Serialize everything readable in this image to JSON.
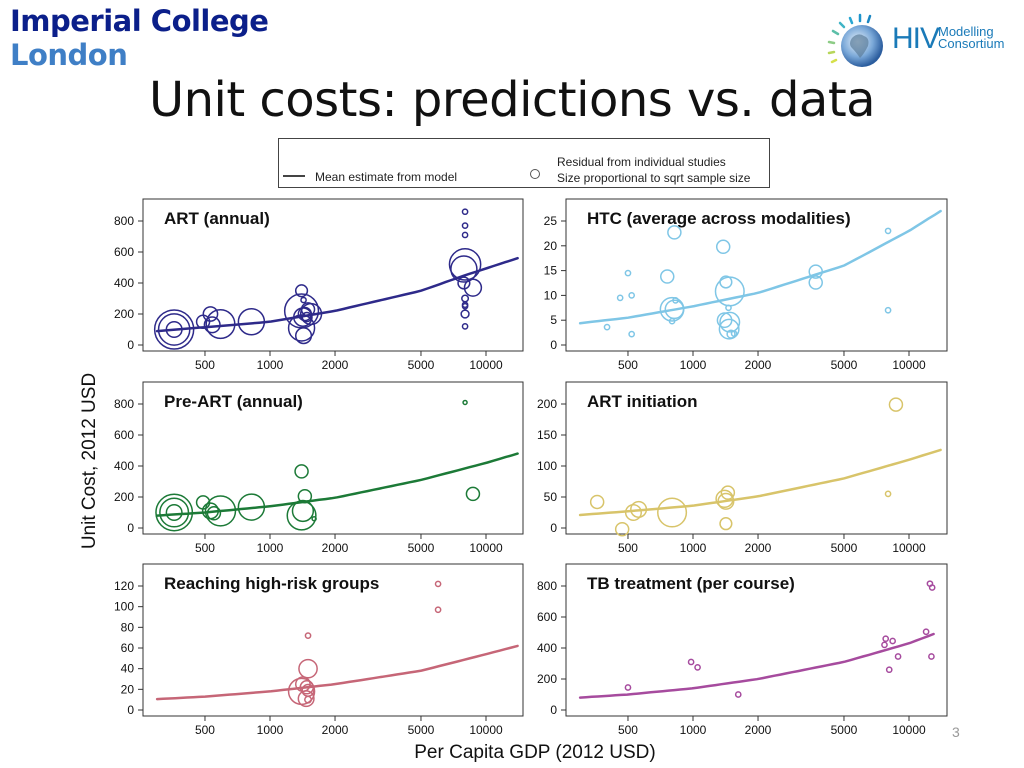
{
  "header": {
    "logo_line1": "Imperial College",
    "logo_line2": "London",
    "partner_logo_big": "HIV",
    "partner_logo_line1": "Modelling",
    "partner_logo_line2": "Consortium",
    "title": "Unit costs: predictions vs. data"
  },
  "legend": {
    "line_label": "Mean estimate from model",
    "circle_label_1": "Residual from individual studies",
    "circle_label_2": "Size proportional to sqrt sample size"
  },
  "axes": {
    "ylabel": "Unit Cost, 2012 USD",
    "xlabel": "Per Capita GDP (2012 USD)"
  },
  "page_number": "3",
  "chart_data": [
    {
      "type": "scatter",
      "title": "ART (annual)",
      "color": "#2e2a8a",
      "xscale": "log",
      "xlim": [
        280,
        14000
      ],
      "xticks": [
        500,
        1000,
        2000,
        5000,
        10000
      ],
      "ylim": [
        0,
        900
      ],
      "yticks": [
        0,
        200,
        400,
        600,
        800
      ],
      "curve": [
        [
          300,
          90
        ],
        [
          500,
          115
        ],
        [
          1000,
          150
        ],
        [
          2000,
          220
        ],
        [
          5000,
          350
        ],
        [
          8000,
          450
        ],
        [
          14000,
          560
        ]
      ],
      "points": [
        {
          "x": 360,
          "y": 100,
          "s": 3
        },
        {
          "x": 360,
          "y": 100,
          "s": 2.4
        },
        {
          "x": 360,
          "y": 100,
          "s": 1.2
        },
        {
          "x": 490,
          "y": 150,
          "s": 1
        },
        {
          "x": 530,
          "y": 200,
          "s": 1.1
        },
        {
          "x": 540,
          "y": 130,
          "s": 1.2
        },
        {
          "x": 590,
          "y": 135,
          "s": 2.2
        },
        {
          "x": 820,
          "y": 150,
          "s": 2
        },
        {
          "x": 1400,
          "y": 350,
          "s": 0.9
        },
        {
          "x": 1430,
          "y": 290,
          "s": 0.4
        },
        {
          "x": 1400,
          "y": 220,
          "s": 2.6
        },
        {
          "x": 1420,
          "y": 180,
          "s": 1.4
        },
        {
          "x": 1450,
          "y": 200,
          "s": 1
        },
        {
          "x": 1500,
          "y": 230,
          "s": 1
        },
        {
          "x": 1550,
          "y": 200,
          "s": 1.6
        },
        {
          "x": 1480,
          "y": 180,
          "s": 0.7
        },
        {
          "x": 1400,
          "y": 110,
          "s": 2
        },
        {
          "x": 1430,
          "y": 60,
          "s": 1.2
        },
        {
          "x": 8000,
          "y": 860,
          "s": 0.4
        },
        {
          "x": 8000,
          "y": 770,
          "s": 0.4
        },
        {
          "x": 8000,
          "y": 710,
          "s": 0.4
        },
        {
          "x": 8000,
          "y": 520,
          "s": 2.4
        },
        {
          "x": 7900,
          "y": 490,
          "s": 2
        },
        {
          "x": 7900,
          "y": 400,
          "s": 0.9
        },
        {
          "x": 8700,
          "y": 370,
          "s": 1.3
        },
        {
          "x": 8000,
          "y": 300,
          "s": 0.5
        },
        {
          "x": 8000,
          "y": 260,
          "s": 0.4
        },
        {
          "x": 8000,
          "y": 250,
          "s": 0.4
        },
        {
          "x": 8000,
          "y": 200,
          "s": 0.6
        },
        {
          "x": 8000,
          "y": 120,
          "s": 0.4
        }
      ]
    },
    {
      "type": "scatter",
      "title": "HTC (average across modalities)",
      "color": "#7fc6e6",
      "xscale": "log",
      "xlim": [
        280,
        14000
      ],
      "xticks": [
        500,
        1000,
        2000,
        5000,
        10000
      ],
      "ylim": [
        0,
        28
      ],
      "yticks": [
        0,
        5,
        10,
        15,
        20,
        25
      ],
      "curve": [
        [
          300,
          4.4
        ],
        [
          500,
          5.5
        ],
        [
          1000,
          7.8
        ],
        [
          2000,
          10.5
        ],
        [
          5000,
          16
        ],
        [
          10000,
          23
        ],
        [
          14000,
          27
        ]
      ],
      "points": [
        {
          "x": 400,
          "y": 3.6,
          "s": 0.4
        },
        {
          "x": 460,
          "y": 9.5,
          "s": 0.4
        },
        {
          "x": 500,
          "y": 14.5,
          "s": 0.4
        },
        {
          "x": 520,
          "y": 10,
          "s": 0.4
        },
        {
          "x": 520,
          "y": 2.2,
          "s": 0.4
        },
        {
          "x": 760,
          "y": 13.8,
          "s": 1
        },
        {
          "x": 820,
          "y": 22.7,
          "s": 1
        },
        {
          "x": 800,
          "y": 7.2,
          "s": 1.8
        },
        {
          "x": 820,
          "y": 7.2,
          "s": 1.4
        },
        {
          "x": 830,
          "y": 9,
          "s": 0.4
        },
        {
          "x": 800,
          "y": 4.8,
          "s": 0.4
        },
        {
          "x": 1380,
          "y": 19.8,
          "s": 1
        },
        {
          "x": 1420,
          "y": 12.7,
          "s": 0.9
        },
        {
          "x": 1480,
          "y": 10.8,
          "s": 2.2
        },
        {
          "x": 1460,
          "y": 7.5,
          "s": 0.4
        },
        {
          "x": 1400,
          "y": 5,
          "s": 1.1
        },
        {
          "x": 1480,
          "y": 4.6,
          "s": 1.5
        },
        {
          "x": 1470,
          "y": 3.2,
          "s": 1.5
        },
        {
          "x": 1500,
          "y": 2.2,
          "s": 0.6
        },
        {
          "x": 1550,
          "y": 2.3,
          "s": 0.4
        },
        {
          "x": 3700,
          "y": 14.8,
          "s": 1
        },
        {
          "x": 3700,
          "y": 12.6,
          "s": 1
        },
        {
          "x": 8000,
          "y": 23,
          "s": 0.4
        },
        {
          "x": 8000,
          "y": 7,
          "s": 0.4
        }
      ]
    },
    {
      "type": "scatter",
      "title": "Pre-ART (annual)",
      "color": "#1c7a37",
      "xscale": "log",
      "xlim": [
        280,
        14000
      ],
      "xticks": [
        500,
        1000,
        2000,
        5000,
        10000
      ],
      "ylim": [
        0,
        850
      ],
      "yticks": [
        0,
        200,
        400,
        600,
        800
      ],
      "curve": [
        [
          300,
          80
        ],
        [
          500,
          100
        ],
        [
          1000,
          140
        ],
        [
          2000,
          195
        ],
        [
          5000,
          310
        ],
        [
          10000,
          420
        ],
        [
          14000,
          480
        ]
      ],
      "points": [
        {
          "x": 360,
          "y": 100,
          "s": 2.8
        },
        {
          "x": 360,
          "y": 100,
          "s": 2.2
        },
        {
          "x": 360,
          "y": 100,
          "s": 1.2
        },
        {
          "x": 490,
          "y": 165,
          "s": 1
        },
        {
          "x": 530,
          "y": 110,
          "s": 1.2
        },
        {
          "x": 550,
          "y": 95,
          "s": 1
        },
        {
          "x": 590,
          "y": 110,
          "s": 2.3
        },
        {
          "x": 820,
          "y": 135,
          "s": 2
        },
        {
          "x": 1400,
          "y": 365,
          "s": 1
        },
        {
          "x": 1450,
          "y": 205,
          "s": 1
        },
        {
          "x": 1420,
          "y": 110,
          "s": 1.6
        },
        {
          "x": 1400,
          "y": 80,
          "s": 2.2
        },
        {
          "x": 1600,
          "y": 60,
          "s": 0.3
        },
        {
          "x": 8000,
          "y": 810,
          "s": 0.3
        },
        {
          "x": 8700,
          "y": 220,
          "s": 1
        }
      ]
    },
    {
      "type": "scatter",
      "title": "ART initiation",
      "color": "#d8c46a",
      "xscale": "log",
      "xlim": [
        280,
        14000
      ],
      "xticks": [
        500,
        1000,
        2000,
        5000,
        10000
      ],
      "ylim": [
        0,
        205
      ],
      "yticks": [
        0,
        50,
        100,
        150,
        200
      ],
      "curve": [
        [
          300,
          21
        ],
        [
          500,
          27
        ],
        [
          1000,
          36
        ],
        [
          2000,
          51
        ],
        [
          5000,
          80
        ],
        [
          10000,
          110
        ],
        [
          14000,
          126
        ]
      ],
      "points": [
        {
          "x": 360,
          "y": 42,
          "s": 1
        },
        {
          "x": 470,
          "y": -2,
          "s": 1
        },
        {
          "x": 530,
          "y": 25,
          "s": 1.2
        },
        {
          "x": 560,
          "y": 30,
          "s": 1.2
        },
        {
          "x": 800,
          "y": 25,
          "s": 2.2
        },
        {
          "x": 1400,
          "y": 47,
          "s": 1.3
        },
        {
          "x": 1420,
          "y": 43,
          "s": 1.2
        },
        {
          "x": 1450,
          "y": 57,
          "s": 1
        },
        {
          "x": 1420,
          "y": 7,
          "s": 0.9
        },
        {
          "x": 8000,
          "y": 55,
          "s": 0.4
        },
        {
          "x": 8700,
          "y": 199,
          "s": 1
        }
      ]
    },
    {
      "type": "scatter",
      "title": "Reaching high-risk groups",
      "color": "#c66677",
      "xscale": "log",
      "xlim": [
        280,
        14000
      ],
      "xticks": [
        500,
        1000,
        2000,
        5000,
        10000
      ],
      "ylim": [
        0,
        125
      ],
      "yticks": [
        0,
        20,
        40,
        60,
        80,
        100,
        120
      ],
      "curve": [
        [
          300,
          10.5
        ],
        [
          500,
          13
        ],
        [
          1000,
          18
        ],
        [
          2000,
          25
        ],
        [
          5000,
          38
        ],
        [
          10000,
          54
        ],
        [
          14000,
          62
        ]
      ],
      "points": [
        {
          "x": 1500,
          "y": 72,
          "s": 0.4
        },
        {
          "x": 1500,
          "y": 40,
          "s": 1.4
        },
        {
          "x": 1420,
          "y": 25,
          "s": 1.1
        },
        {
          "x": 1400,
          "y": 18,
          "s": 2
        },
        {
          "x": 1480,
          "y": 22,
          "s": 1
        },
        {
          "x": 1500,
          "y": 19,
          "s": 0.9
        },
        {
          "x": 1470,
          "y": 11,
          "s": 1.2
        },
        {
          "x": 1500,
          "y": 10,
          "s": 0.5
        },
        {
          "x": 6000,
          "y": 122,
          "s": 0.4
        },
        {
          "x": 6000,
          "y": 97,
          "s": 0.4
        }
      ]
    },
    {
      "type": "scatter",
      "title": "TB treatment (per course)",
      "color": "#a64b9e",
      "xscale": "log",
      "xlim": [
        280,
        14000
      ],
      "xticks": [
        500,
        1000,
        2000,
        5000,
        10000
      ],
      "ylim": [
        0,
        840
      ],
      "yticks": [
        0,
        200,
        400,
        600,
        800
      ],
      "curve": [
        [
          300,
          80
        ],
        [
          500,
          100
        ],
        [
          1000,
          140
        ],
        [
          2000,
          200
        ],
        [
          5000,
          310
        ],
        [
          10000,
          430
        ],
        [
          13000,
          490
        ]
      ],
      "points": [
        {
          "x": 500,
          "y": 145,
          "s": 0.4
        },
        {
          "x": 980,
          "y": 310,
          "s": 0.4
        },
        {
          "x": 1050,
          "y": 275,
          "s": 0.4
        },
        {
          "x": 1620,
          "y": 100,
          "s": 0.4
        },
        {
          "x": 7800,
          "y": 460,
          "s": 0.4
        },
        {
          "x": 7700,
          "y": 420,
          "s": 0.4
        },
        {
          "x": 8100,
          "y": 260,
          "s": 0.4
        },
        {
          "x": 8400,
          "y": 445,
          "s": 0.4
        },
        {
          "x": 8900,
          "y": 345,
          "s": 0.4
        },
        {
          "x": 12000,
          "y": 505,
          "s": 0.4
        },
        {
          "x": 12500,
          "y": 815,
          "s": 0.4
        },
        {
          "x": 12800,
          "y": 790,
          "s": 0.4
        },
        {
          "x": 12700,
          "y": 345,
          "s": 0.4
        }
      ]
    }
  ]
}
